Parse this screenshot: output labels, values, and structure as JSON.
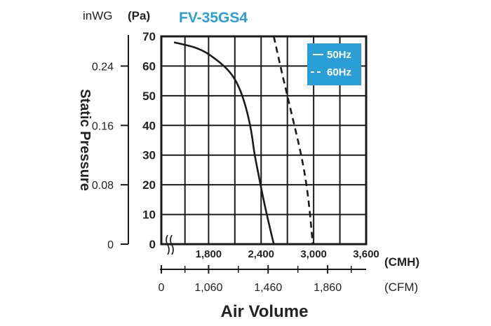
{
  "chart_data": {
    "type": "line",
    "title": "FV-35GS4",
    "xlabel": "Air Volume",
    "ylabel": "Static Pressure",
    "x_unit_primary": "(CMH)",
    "x_unit_secondary": "(CFM)",
    "y_unit_primary": "(Pa)",
    "y_unit_secondary": "inWG",
    "xlim": [
      1260,
      3600
    ],
    "ylim": [
      0,
      70
    ],
    "x_grid": [
      1260,
      1530,
      1800,
      2100,
      2400,
      2700,
      3000,
      3300,
      3600
    ],
    "x_ticks_primary": [
      {
        "value": 1800,
        "label": "1,800"
      },
      {
        "value": 2400,
        "label": "2,400"
      },
      {
        "value": 3000,
        "label": "3,000"
      },
      {
        "value": 3600,
        "label": "3,600"
      }
    ],
    "x_ticks_secondary": [
      {
        "value": 1260,
        "label": "0"
      },
      {
        "value": 1800,
        "label": "1,060"
      },
      {
        "value": 2480,
        "label": "1,460"
      },
      {
        "value": 3160,
        "label": "1,860"
      }
    ],
    "y_ticks_primary": [
      {
        "value": 0,
        "label": "0"
      },
      {
        "value": 10,
        "label": "10"
      },
      {
        "value": 20,
        "label": "20"
      },
      {
        "value": 30,
        "label": "30"
      },
      {
        "value": 40,
        "label": "40"
      },
      {
        "value": 50,
        "label": "50"
      },
      {
        "value": 60,
        "label": "60"
      },
      {
        "value": 70,
        "label": "70"
      }
    ],
    "y_ticks_secondary": [
      {
        "value": 0,
        "label": "0"
      },
      {
        "value": 20,
        "label": "0.08"
      },
      {
        "value": 40,
        "label": "0.16"
      },
      {
        "value": 60,
        "label": "0.24"
      }
    ],
    "grid": true,
    "legend_position": "top-right",
    "legend_color": "#2a9fd6",
    "axis_break": true,
    "series": [
      {
        "name": "50Hz",
        "dash": "solid",
        "x": [
          1405,
          1700,
          1900,
          2050,
          2150,
          2230,
          2290,
          2320,
          2360,
          2420,
          2480,
          2545
        ],
        "y": [
          68,
          66,
          62,
          58,
          53,
          46,
          38,
          31,
          25,
          16,
          8,
          0
        ]
      },
      {
        "name": "60Hz",
        "dash": "dashed",
        "x": [
          2545,
          2620,
          2700,
          2780,
          2860,
          2920,
          2960,
          2990
        ],
        "y": [
          71,
          60,
          50,
          40,
          30,
          20,
          10,
          0
        ]
      }
    ]
  }
}
